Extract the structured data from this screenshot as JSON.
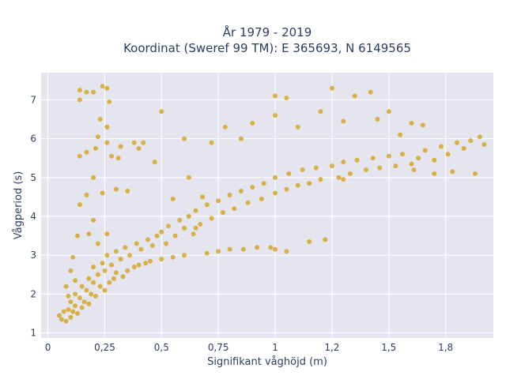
{
  "chart_data": {
    "type": "scatter",
    "title_line1": "År 1979 - 2019",
    "title_line2": "Koordinat (Sweref 99 TM): E 365693, N 6149565",
    "xlabel": "Signifikant våghöjd (m)",
    "ylabel": "Vågperiod (s)",
    "xlim": [
      -0.03,
      1.96
    ],
    "ylim": [
      0.87,
      7.7
    ],
    "xticks": [
      {
        "value": 0,
        "label": "0"
      },
      {
        "value": 0.25,
        "label": "0,25"
      },
      {
        "value": 0.5,
        "label": "0,5"
      },
      {
        "value": 0.75,
        "label": "0,75"
      },
      {
        "value": 1.0,
        "label": "1"
      },
      {
        "value": 1.25,
        "label": "1,2"
      },
      {
        "value": 1.5,
        "label": "1,5"
      },
      {
        "value": 1.75,
        "label": "1,8"
      }
    ],
    "yticks": [
      {
        "value": 1,
        "label": "1"
      },
      {
        "value": 2,
        "label": "2"
      },
      {
        "value": 3,
        "label": "3"
      },
      {
        "value": 4,
        "label": "4"
      },
      {
        "value": 5,
        "label": "5"
      },
      {
        "value": 6,
        "label": "6"
      },
      {
        "value": 7,
        "label": "7"
      }
    ],
    "grid": true,
    "marker_color": "#d4a21c",
    "plot_bg": "#e5e5f0",
    "series": [
      {
        "points": [
          [
            0.05,
            1.45
          ],
          [
            0.06,
            1.35
          ],
          [
            0.07,
            1.55
          ],
          [
            0.08,
            1.3
          ],
          [
            0.09,
            1.6
          ],
          [
            0.1,
            1.4
          ],
          [
            0.1,
            1.8
          ],
          [
            0.11,
            1.55
          ],
          [
            0.12,
            1.7
          ],
          [
            0.12,
            2.0
          ],
          [
            0.13,
            1.5
          ],
          [
            0.14,
            1.9
          ],
          [
            0.15,
            1.65
          ],
          [
            0.15,
            2.2
          ],
          [
            0.16,
            1.8
          ],
          [
            0.17,
            2.1
          ],
          [
            0.18,
            1.75
          ],
          [
            0.18,
            2.4
          ],
          [
            0.19,
            2.0
          ],
          [
            0.2,
            2.3
          ],
          [
            0.2,
            2.7
          ],
          [
            0.21,
            1.95
          ],
          [
            0.22,
            2.5
          ],
          [
            0.23,
            2.2
          ],
          [
            0.24,
            2.8
          ],
          [
            0.25,
            2.1
          ],
          [
            0.25,
            2.6
          ],
          [
            0.26,
            3.0
          ],
          [
            0.27,
            2.3
          ],
          [
            0.28,
            2.75
          ],
          [
            0.29,
            2.4
          ],
          [
            0.3,
            3.1
          ],
          [
            0.3,
            2.55
          ],
          [
            0.32,
            2.9
          ],
          [
            0.33,
            2.45
          ],
          [
            0.34,
            3.2
          ],
          [
            0.35,
            2.6
          ],
          [
            0.36,
            3.0
          ],
          [
            0.38,
            2.7
          ],
          [
            0.39,
            3.3
          ],
          [
            0.4,
            2.75
          ],
          [
            0.41,
            3.15
          ],
          [
            0.43,
            2.8
          ],
          [
            0.44,
            3.4
          ],
          [
            0.45,
            2.85
          ],
          [
            0.46,
            3.25
          ],
          [
            0.48,
            3.5
          ],
          [
            0.5,
            2.9
          ],
          [
            0.5,
            3.6
          ],
          [
            0.52,
            3.3
          ],
          [
            0.53,
            3.75
          ],
          [
            0.55,
            2.95
          ],
          [
            0.56,
            3.5
          ],
          [
            0.58,
            3.9
          ],
          [
            0.6,
            3.0
          ],
          [
            0.6,
            3.7
          ],
          [
            0.62,
            4.0
          ],
          [
            0.64,
            3.55
          ],
          [
            0.65,
            4.15
          ],
          [
            0.67,
            3.8
          ],
          [
            0.7,
            4.3
          ],
          [
            0.7,
            3.05
          ],
          [
            0.72,
            3.95
          ],
          [
            0.75,
            4.4
          ],
          [
            0.75,
            3.1
          ],
          [
            0.77,
            4.1
          ],
          [
            0.8,
            4.55
          ],
          [
            0.8,
            3.15
          ],
          [
            0.82,
            4.2
          ],
          [
            0.85,
            4.65
          ],
          [
            0.86,
            3.15
          ],
          [
            0.88,
            4.35
          ],
          [
            0.9,
            4.75
          ],
          [
            0.92,
            3.2
          ],
          [
            0.94,
            4.45
          ],
          [
            0.95,
            4.85
          ],
          [
            0.98,
            3.2
          ],
          [
            1.0,
            4.6
          ],
          [
            1.0,
            5.0
          ],
          [
            1.05,
            4.7
          ],
          [
            1.06,
            5.1
          ],
          [
            1.1,
            4.8
          ],
          [
            1.12,
            5.2
          ],
          [
            1.15,
            4.85
          ],
          [
            1.18,
            5.25
          ],
          [
            1.2,
            4.95
          ],
          [
            1.22,
            3.4
          ],
          [
            1.25,
            5.3
          ],
          [
            1.28,
            5.0
          ],
          [
            1.3,
            5.4
          ],
          [
            1.33,
            5.1
          ],
          [
            1.36,
            5.45
          ],
          [
            1.4,
            5.2
          ],
          [
            1.43,
            5.5
          ],
          [
            1.46,
            5.25
          ],
          [
            1.5,
            5.55
          ],
          [
            1.53,
            5.3
          ],
          [
            1.56,
            5.6
          ],
          [
            1.6,
            5.35
          ],
          [
            1.63,
            5.5
          ],
          [
            1.66,
            5.7
          ],
          [
            1.7,
            5.45
          ],
          [
            1.73,
            5.8
          ],
          [
            1.76,
            5.6
          ],
          [
            1.8,
            5.9
          ],
          [
            1.83,
            5.75
          ],
          [
            1.86,
            5.95
          ],
          [
            1.9,
            6.05
          ],
          [
            1.92,
            5.85
          ],
          [
            1.78,
            5.15
          ],
          [
            0.14,
            7.25
          ],
          [
            0.17,
            7.2
          ],
          [
            0.2,
            7.2
          ],
          [
            0.24,
            7.35
          ],
          [
            0.26,
            7.3
          ],
          [
            0.14,
            7.0
          ],
          [
            0.27,
            6.95
          ],
          [
            0.23,
            6.5
          ],
          [
            0.26,
            6.3
          ],
          [
            0.22,
            6.05
          ],
          [
            0.14,
            5.55
          ],
          [
            0.17,
            5.65
          ],
          [
            0.21,
            5.75
          ],
          [
            0.26,
            5.9
          ],
          [
            0.28,
            5.55
          ],
          [
            0.32,
            5.8
          ],
          [
            0.2,
            5.0
          ],
          [
            0.24,
            4.6
          ],
          [
            0.17,
            4.55
          ],
          [
            0.14,
            4.3
          ],
          [
            0.3,
            4.7
          ],
          [
            0.35,
            4.65
          ],
          [
            0.2,
            3.9
          ],
          [
            0.13,
            3.5
          ],
          [
            0.18,
            3.55
          ],
          [
            0.22,
            3.3
          ],
          [
            0.26,
            3.55
          ],
          [
            0.47,
            5.4
          ],
          [
            0.62,
            5.0
          ],
          [
            0.6,
            6.0
          ],
          [
            0.72,
            5.9
          ],
          [
            0.78,
            6.3
          ],
          [
            0.85,
            6.0
          ],
          [
            0.9,
            6.4
          ],
          [
            1.0,
            6.6
          ],
          [
            1.0,
            7.1
          ],
          [
            1.05,
            7.05
          ],
          [
            1.1,
            6.3
          ],
          [
            1.2,
            6.7
          ],
          [
            1.25,
            7.3
          ],
          [
            1.3,
            6.45
          ],
          [
            1.35,
            7.1
          ],
          [
            1.42,
            7.2
          ],
          [
            1.45,
            6.5
          ],
          [
            1.5,
            6.7
          ],
          [
            1.55,
            6.1
          ],
          [
            1.6,
            6.4
          ],
          [
            1.65,
            6.35
          ],
          [
            1.3,
            4.95
          ],
          [
            1.15,
            3.35
          ],
          [
            1.0,
            3.15
          ],
          [
            1.05,
            3.1
          ],
          [
            0.65,
            3.7
          ],
          [
            0.68,
            4.5
          ],
          [
            0.55,
            4.45
          ],
          [
            0.42,
            5.9
          ],
          [
            0.4,
            5.75
          ],
          [
            0.5,
            6.7
          ],
          [
            0.38,
            5.9
          ],
          [
            0.31,
            5.5
          ],
          [
            1.88,
            5.1
          ],
          [
            1.7,
            5.1
          ],
          [
            1.61,
            5.2
          ],
          [
            0.11,
            2.95
          ],
          [
            0.1,
            2.6
          ],
          [
            0.12,
            2.35
          ],
          [
            0.08,
            2.2
          ],
          [
            0.09,
            1.95
          ]
        ]
      }
    ]
  }
}
